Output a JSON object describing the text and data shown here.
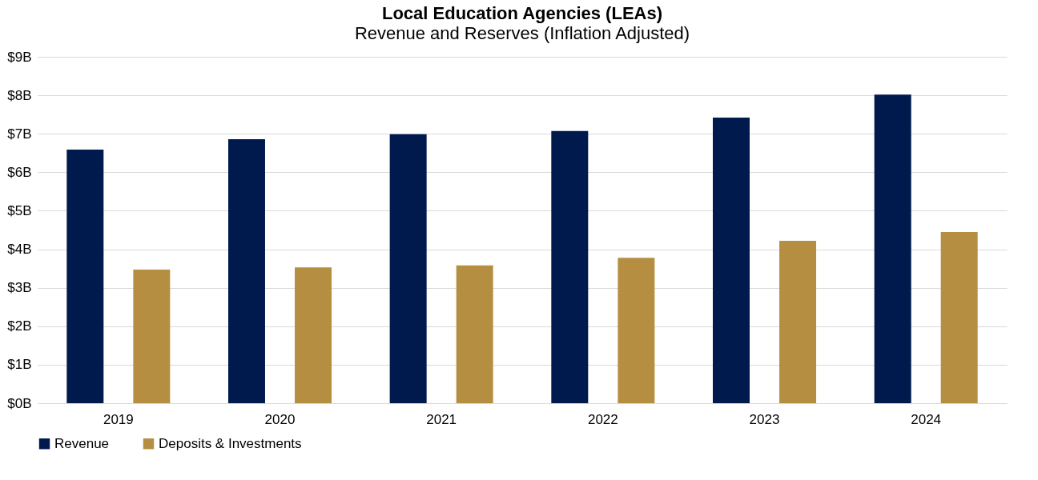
{
  "chart_data": {
    "type": "bar",
    "title": "Local Education Agencies (LEAs)",
    "subtitle": "Revenue and Reserves (Inflation Adjusted)",
    "categories": [
      "2019",
      "2020",
      "2021",
      "2022",
      "2023",
      "2024"
    ],
    "series": [
      {
        "name": "Revenue",
        "color": "#001a4e",
        "values": [
          6.59,
          6.86,
          6.99,
          7.07,
          7.42,
          8.02
        ]
      },
      {
        "name": "Deposits & Investments",
        "color": "#b58e42",
        "values": [
          3.47,
          3.53,
          3.58,
          3.78,
          4.22,
          4.45
        ]
      }
    ],
    "ylim": [
      0,
      9
    ],
    "yticks": [
      {
        "value": 0,
        "label": "$0B"
      },
      {
        "value": 1,
        "label": "$1B"
      },
      {
        "value": 2,
        "label": "$2B"
      },
      {
        "value": 3,
        "label": "$3B"
      },
      {
        "value": 4,
        "label": "$4B"
      },
      {
        "value": 5,
        "label": "$5B"
      },
      {
        "value": 6,
        "label": "$6B"
      },
      {
        "value": 7,
        "label": "$7B"
      },
      {
        "value": 8,
        "label": "$8B"
      },
      {
        "value": 9,
        "label": "$9B"
      }
    ],
    "grid": "y",
    "legend": "bottom"
  }
}
